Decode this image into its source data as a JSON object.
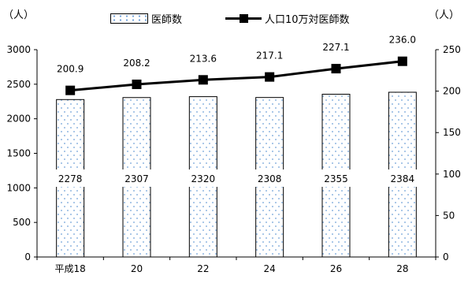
{
  "units": {
    "left": "（人）",
    "right": "（人）"
  },
  "chart_data": {
    "type": "bar",
    "categories": [
      "平成18",
      "20",
      "22",
      "24",
      "26",
      "28"
    ],
    "series": [
      {
        "name": "医師数",
        "type": "bar",
        "axis": "left",
        "values": [
          2278,
          2307,
          2320,
          2308,
          2355,
          2384
        ],
        "labels": [
          "2278",
          "2307",
          "2320",
          "2308",
          "2355",
          "2384"
        ]
      },
      {
        "name": "人口10万対医師数",
        "type": "line",
        "axis": "right",
        "values": [
          200.9,
          208.2,
          213.6,
          217.1,
          227.1,
          236.0
        ],
        "labels": [
          "200.9",
          "208.2",
          "213.6",
          "217.1",
          "227.1",
          "236.0"
        ]
      }
    ],
    "y_left": {
      "min": 0,
      "max": 3000,
      "ticks": [
        0,
        500,
        1000,
        1500,
        2000,
        2500,
        3000
      ]
    },
    "y_right": {
      "min": 0,
      "max": 250,
      "ticks": [
        0,
        50,
        100,
        150,
        200,
        250
      ]
    },
    "legend": "top-center",
    "grid": false,
    "colors": {
      "bar_fill": "#ffffff",
      "bar_dots": "#6fa0d8",
      "bar_border": "#000000",
      "line": "#000000",
      "axis": "#000000"
    }
  }
}
